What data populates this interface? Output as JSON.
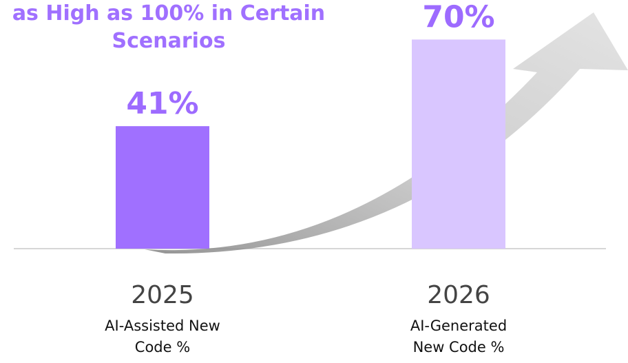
{
  "chart_data": {
    "type": "bar",
    "title": "as High as 100% in Certain Scenarios",
    "categories": [
      "2025",
      "2026"
    ],
    "descriptions": [
      "AI-Assisted New Code %",
      "AI-Generated New Code %"
    ],
    "values": [
      41,
      70
    ],
    "value_labels": [
      "41%",
      "70%"
    ],
    "colors": [
      "#a070ff",
      "#d9c6ff"
    ],
    "label_color": "#9d6bff",
    "ylim": [
      0,
      80
    ]
  }
}
